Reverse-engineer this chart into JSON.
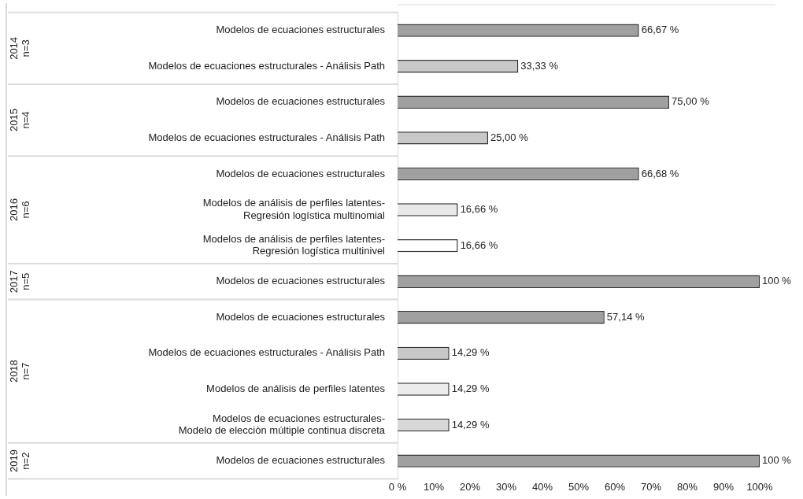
{
  "chart_data": {
    "type": "bar",
    "orientation": "horizontal",
    "categories": [
      "Modelos de ecuaciones estructurales",
      "Modelos de ecuaciones estructurales - Análisis Path",
      "Modelos de ecuaciones estructurales",
      "Modelos de ecuaciones estructurales - Análisis Path",
      "Modelos de ecuaciones estructurales",
      "Modelos de análisis de perfiles latentes-\nRegresión logística multinomial",
      "Modelos de análisis de perfiles latentes-\nRegresión logística multinivel",
      "Modelos de ecuaciones estructurales",
      "Modelos de ecuaciones estructurales",
      "Modelos de ecuaciones estructurales - Análisis Path",
      "Modelos de análisis de perfiles latentes",
      "Modelos de ecuaciones estructurales-\nModelo de elecciòn múltiple continua discreta",
      "Modelos de ecuaciones estructurales"
    ],
    "values": [
      66.67,
      33.33,
      75.0,
      25.0,
      66.68,
      16.66,
      16.66,
      100,
      57.14,
      14.29,
      14.29,
      14.29,
      100
    ],
    "value_labels": [
      "66,67 %",
      "33,33 %",
      "75,00 %",
      "25,00 %",
      "66,68 %",
      "16,66 %",
      "16,66 %",
      "100 %",
      "57,14 %",
      "14,29 %",
      "14,29 %",
      "14,29 %",
      "100 %"
    ],
    "colors": [
      "#a0a0a0",
      "#c8c8c8",
      "#a0a0a0",
      "#c8c8c8",
      "#a0a0a0",
      "#e8e8e8",
      "#ffffff",
      "#a0a0a0",
      "#a0a0a0",
      "#c8c8c8",
      "#ececec",
      "#d8d8d8",
      "#a0a0a0"
    ],
    "xlim": [
      0,
      100
    ],
    "xticks": [
      {
        "value": 0,
        "label": "0 %"
      },
      {
        "value": 10,
        "label": "10%"
      },
      {
        "value": 20,
        "label": "20%"
      },
      {
        "value": 30,
        "label": "30%"
      },
      {
        "value": 40,
        "label": "40%"
      },
      {
        "value": 50,
        "label": "50%"
      },
      {
        "value": 60,
        "label": "60%"
      },
      {
        "value": 70,
        "label": "70%"
      },
      {
        "value": 80,
        "label": "80%"
      },
      {
        "value": 90,
        "label": "90%"
      },
      {
        "value": 100,
        "label": "100%"
      }
    ],
    "annotations": [
      "2014\nn=3",
      "2015\nn=4",
      "2016\nn=6",
      "2017\nn=5",
      "2018\nn=7",
      "2019\nn=2"
    ],
    "grid": false,
    "legend": false
  }
}
